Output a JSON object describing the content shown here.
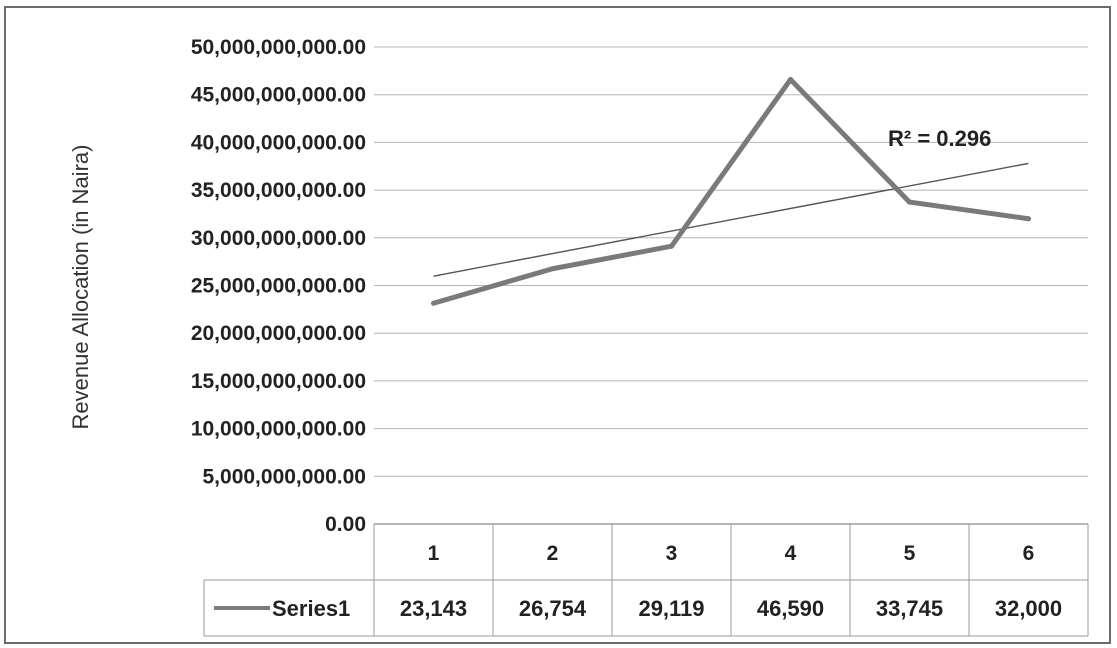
{
  "chart_data": {
    "type": "line",
    "ylabel": "Revenue Allocation (in Naira)",
    "ylim": [
      0,
      50000000000
    ],
    "ytick_step": 5000000000,
    "ytick_labels": [
      "0.00",
      "5,000,000,000.00",
      "10,000,000,000.00",
      "15,000,000,000.00",
      "20,000,000,000.00",
      "25,000,000,000.00",
      "30,000,000,000.00",
      "35,000,000,000.00",
      "40,000,000,000.00",
      "45,000,000,000.00",
      "50,000,000,000.00"
    ],
    "categories": [
      "1",
      "2",
      "3",
      "4",
      "5",
      "6"
    ],
    "series": [
      {
        "name": "Series1",
        "values": [
          23143000000,
          26754000000,
          29119000000,
          46590000000,
          33745000000,
          32000000000
        ],
        "table_labels": [
          "23,143",
          "26,754",
          "29,119",
          "46,590",
          "33,745",
          "32,000"
        ],
        "color": "#7a7a7a"
      }
    ],
    "trendline": {
      "type": "linear",
      "label": "R² = 0.296",
      "color": "#555555"
    },
    "grid": true,
    "data_table": true
  }
}
